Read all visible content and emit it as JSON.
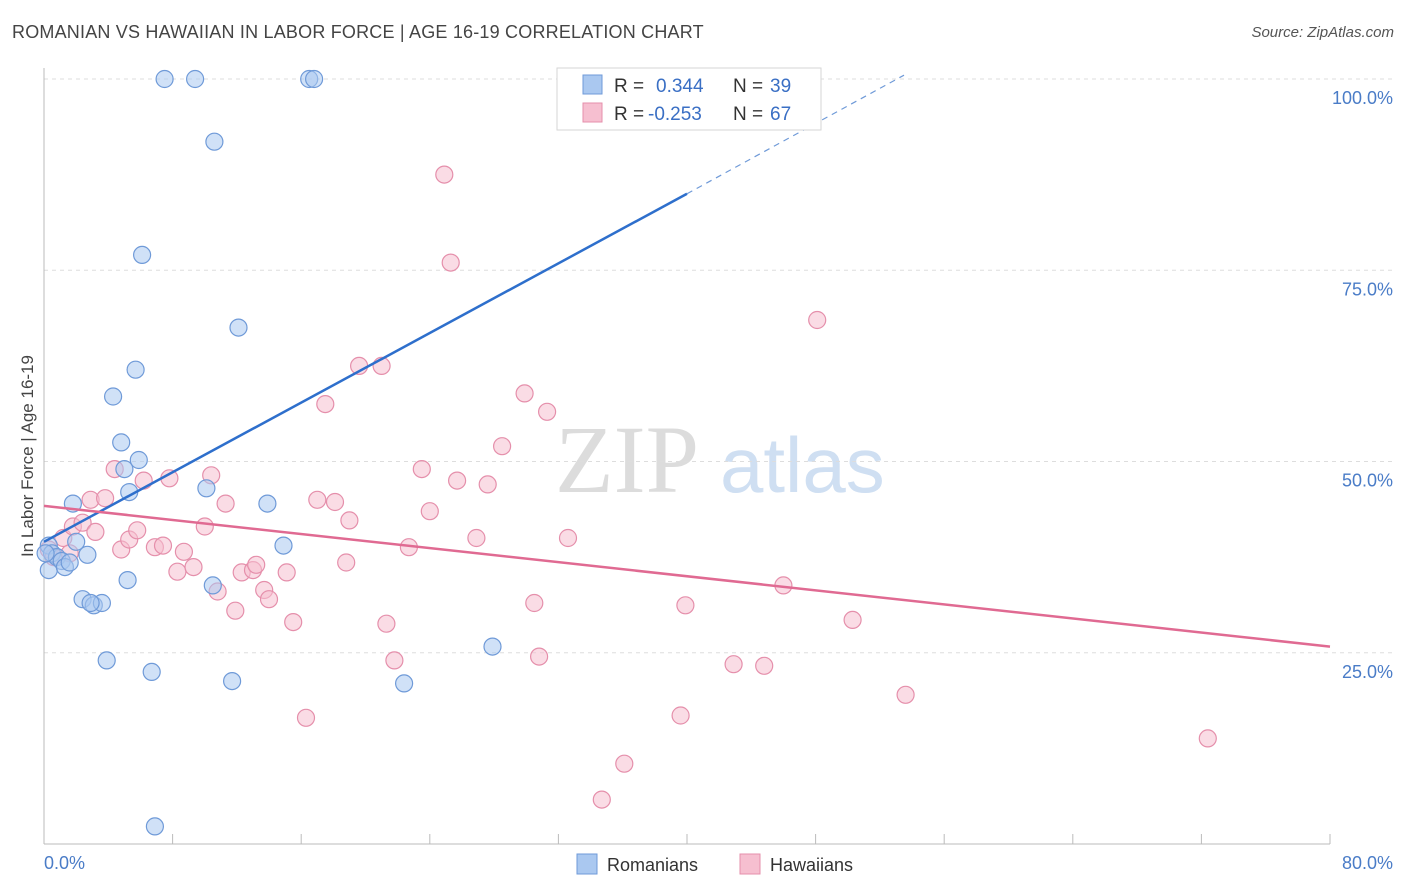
{
  "title": "ROMANIAN VS HAWAIIAN IN LABOR FORCE | AGE 16-19 CORRELATION CHART",
  "source": "Source: ZipAtlas.com",
  "watermark": {
    "zip": "ZIP",
    "atlas": "atlas"
  },
  "legend_top": [
    {
      "r_label": "R =",
      "r_value": "0.344",
      "n_label": "N =",
      "n_value": "39"
    },
    {
      "r_label": "R =",
      "r_value": "-0.253",
      "n_label": "N =",
      "n_value": "67"
    }
  ],
  "legend_bottom": [
    "Romanians",
    "Hawaiians"
  ],
  "colors": {
    "romanians_fill": "#aac8f0",
    "romanians_stroke": "#6f9ad8",
    "romanians_line": "#2e6fcc",
    "hawaiians_fill": "#f6bfd0",
    "hawaiians_stroke": "#e58fab",
    "hawaiians_line": "#e06a92",
    "tick_text": "#4a7cc7",
    "grid": "#dddddd"
  },
  "chart_data": {
    "type": "scatter",
    "title": "ROMANIAN VS HAWAIIAN IN LABOR FORCE | AGE 16-19 CORRELATION CHART",
    "xlabel": "",
    "ylabel": "In Labor Force | Age 16-19",
    "xlim": [
      0,
      80
    ],
    "ylim": [
      0,
      102
    ],
    "x_tick_labels": [
      "0.0%",
      "80.0%"
    ],
    "y_ticks": [
      25,
      50,
      75,
      100
    ],
    "y_tick_labels": [
      "25.0%",
      "50.0%",
      "75.0%",
      "100.0%"
    ],
    "grid": true,
    "legend_placement": "top-center",
    "series": [
      {
        "name": "Romanians",
        "R": 0.344,
        "N": 39,
        "trend": {
          "x": [
            0,
            40
          ],
          "y": [
            39.5,
            85.0
          ],
          "dashed_extension_to": [
            53.5,
            100.5
          ]
        },
        "points": [
          [
            0.3,
            39.0
          ],
          [
            0.3,
            35.8
          ],
          [
            0.5,
            38.0
          ],
          [
            0.8,
            37.5
          ],
          [
            1.1,
            37.0
          ],
          [
            1.3,
            36.2
          ],
          [
            1.6,
            36.8
          ],
          [
            1.8,
            44.5
          ],
          [
            2.0,
            39.5
          ],
          [
            2.4,
            32.0
          ],
          [
            2.7,
            37.8
          ],
          [
            3.1,
            31.2
          ],
          [
            3.6,
            31.5
          ],
          [
            3.9,
            24.0
          ],
          [
            4.3,
            58.5
          ],
          [
            4.8,
            52.5
          ],
          [
            5.0,
            49.0
          ],
          [
            5.3,
            46.0
          ],
          [
            5.7,
            62.0
          ],
          [
            5.9,
            50.2
          ],
          [
            6.1,
            77.0
          ],
          [
            6.7,
            22.5
          ],
          [
            6.9,
            2.3
          ],
          [
            7.5,
            100.0
          ],
          [
            9.4,
            100.0
          ],
          [
            10.1,
            46.5
          ],
          [
            10.5,
            33.8
          ],
          [
            10.6,
            91.8
          ],
          [
            11.7,
            21.3
          ],
          [
            12.1,
            67.5
          ],
          [
            13.9,
            44.5
          ],
          [
            14.9,
            39.0
          ],
          [
            16.5,
            100.0
          ],
          [
            16.8,
            100.0
          ],
          [
            22.4,
            21.0
          ],
          [
            27.9,
            25.8
          ],
          [
            0.1,
            38.0
          ],
          [
            2.9,
            31.5
          ],
          [
            5.2,
            34.5
          ]
        ]
      },
      {
        "name": "Hawaiians",
        "R": -0.253,
        "N": 67,
        "trend": {
          "x": [
            0,
            80
          ],
          "y": [
            44.2,
            25.8
          ]
        },
        "points": [
          [
            0.3,
            38.5
          ],
          [
            0.6,
            37.5
          ],
          [
            1.2,
            40.0
          ],
          [
            1.6,
            38.0
          ],
          [
            1.8,
            41.5
          ],
          [
            2.4,
            42.0
          ],
          [
            2.9,
            45.0
          ],
          [
            3.2,
            40.8
          ],
          [
            3.8,
            45.2
          ],
          [
            4.4,
            49.0
          ],
          [
            4.8,
            38.5
          ],
          [
            5.3,
            39.8
          ],
          [
            5.8,
            41.0
          ],
          [
            6.2,
            47.5
          ],
          [
            6.9,
            38.8
          ],
          [
            7.4,
            39.0
          ],
          [
            7.8,
            47.8
          ],
          [
            8.3,
            35.6
          ],
          [
            8.7,
            38.2
          ],
          [
            9.3,
            36.2
          ],
          [
            10.0,
            41.5
          ],
          [
            10.4,
            48.2
          ],
          [
            10.8,
            33.0
          ],
          [
            11.3,
            44.5
          ],
          [
            11.9,
            30.5
          ],
          [
            12.3,
            35.5
          ],
          [
            13.0,
            35.8
          ],
          [
            13.2,
            36.5
          ],
          [
            13.7,
            33.2
          ],
          [
            14.0,
            32.0
          ],
          [
            15.1,
            35.5
          ],
          [
            15.5,
            29.0
          ],
          [
            16.3,
            16.5
          ],
          [
            17.0,
            45.0
          ],
          [
            17.5,
            57.5
          ],
          [
            18.1,
            44.7
          ],
          [
            18.8,
            36.8
          ],
          [
            19.0,
            42.3
          ],
          [
            19.6,
            62.5
          ],
          [
            21.0,
            62.5
          ],
          [
            21.3,
            28.8
          ],
          [
            21.8,
            24.0
          ],
          [
            22.7,
            38.8
          ],
          [
            23.5,
            49.0
          ],
          [
            24.0,
            43.5
          ],
          [
            24.9,
            87.5
          ],
          [
            25.3,
            76.0
          ],
          [
            25.7,
            47.5
          ],
          [
            26.9,
            40.0
          ],
          [
            27.6,
            47.0
          ],
          [
            28.5,
            52.0
          ],
          [
            29.9,
            58.9
          ],
          [
            30.5,
            31.5
          ],
          [
            30.8,
            24.5
          ],
          [
            31.3,
            56.5
          ],
          [
            32.6,
            40.0
          ],
          [
            34.7,
            5.8
          ],
          [
            36.1,
            10.5
          ],
          [
            39.6,
            16.8
          ],
          [
            39.9,
            31.2
          ],
          [
            42.9,
            23.5
          ],
          [
            44.8,
            23.3
          ],
          [
            46.0,
            33.8
          ],
          [
            48.1,
            68.5
          ],
          [
            50.3,
            29.3
          ],
          [
            53.6,
            19.5
          ],
          [
            72.4,
            13.8
          ]
        ]
      }
    ]
  }
}
